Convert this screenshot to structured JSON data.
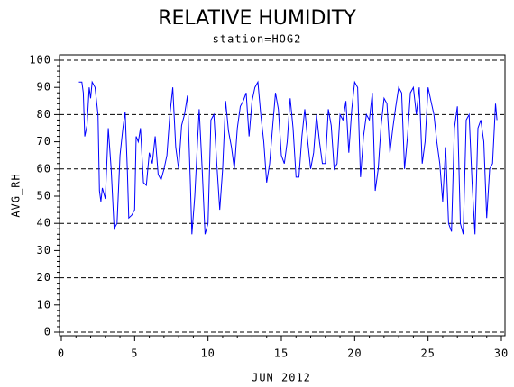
{
  "chart_data": {
    "type": "line",
    "title": "RELATIVE HUMIDITY",
    "subtitle": "station=HOG2",
    "x_label": "JUN 2012",
    "y_label": "AVG_RH",
    "xlim": [
      0,
      30
    ],
    "xticks": [
      0,
      5,
      10,
      15,
      20,
      25,
      30
    ],
    "ylim": [
      0,
      100
    ],
    "yticks": [
      0,
      10,
      20,
      30,
      40,
      50,
      60,
      70,
      80,
      90,
      100
    ],
    "gridlines": [
      0,
      20,
      40,
      60,
      80,
      100
    ],
    "series": [
      {
        "name": "AVG_RH",
        "color": "#0000ff",
        "x": [
          1.2,
          1.4,
          1.5,
          1.6,
          1.75,
          1.9,
          2.0,
          2.1,
          2.3,
          2.5,
          2.6,
          2.7,
          2.8,
          3.0,
          3.2,
          3.4,
          3.6,
          3.8,
          4.0,
          4.2,
          4.35,
          4.5,
          4.6,
          4.8,
          5.0,
          5.1,
          5.25,
          5.4,
          5.6,
          5.8,
          6.0,
          6.2,
          6.4,
          6.6,
          6.8,
          7.0,
          7.2,
          7.4,
          7.6,
          7.8,
          8.0,
          8.2,
          8.4,
          8.6,
          8.8,
          8.9,
          9.1,
          9.4,
          9.6,
          9.8,
          10.0,
          10.2,
          10.4,
          10.6,
          10.8,
          11.0,
          11.2,
          11.4,
          11.6,
          11.8,
          12.0,
          12.2,
          12.4,
          12.6,
          12.8,
          13.0,
          13.2,
          13.4,
          13.6,
          13.8,
          14.0,
          14.2,
          14.4,
          14.6,
          14.8,
          15.0,
          15.2,
          15.4,
          15.6,
          15.8,
          16.0,
          16.2,
          16.4,
          16.6,
          16.8,
          17.0,
          17.2,
          17.4,
          17.6,
          17.8,
          18.0,
          18.2,
          18.4,
          18.6,
          18.8,
          19.0,
          19.2,
          19.4,
          19.6,
          19.8,
          20.0,
          20.2,
          20.4,
          20.6,
          20.8,
          21.0,
          21.2,
          21.4,
          21.6,
          21.8,
          22.0,
          22.2,
          22.4,
          22.6,
          22.8,
          23.0,
          23.2,
          23.4,
          23.6,
          23.8,
          24.0,
          24.2,
          24.4,
          24.6,
          24.8,
          25.0,
          25.2,
          25.4,
          25.6,
          25.8,
          26.0,
          26.2,
          26.4,
          26.6,
          26.8,
          27.0,
          27.2,
          27.4,
          27.6,
          27.8,
          28.0,
          28.2,
          28.4,
          28.6,
          28.8,
          29.0,
          29.2,
          29.4,
          29.6,
          29.7
        ],
        "values": [
          92,
          92,
          88,
          72,
          76,
          90,
          86,
          92,
          90,
          80,
          52,
          48,
          53,
          49,
          75,
          60,
          38,
          40,
          65,
          75,
          81,
          60,
          42,
          43,
          45,
          72,
          70,
          75,
          55,
          54,
          66,
          62,
          72,
          58,
          56,
          60,
          65,
          80,
          90,
          68,
          60,
          76,
          80,
          87,
          55,
          36,
          50,
          82,
          60,
          36,
          40,
          78,
          80,
          62,
          45,
          60,
          85,
          74,
          68,
          60,
          75,
          83,
          85,
          88,
          72,
          85,
          90,
          92,
          80,
          70,
          55,
          62,
          75,
          88,
          82,
          65,
          62,
          70,
          86,
          75,
          57,
          57,
          72,
          82,
          70,
          60,
          66,
          80,
          70,
          62,
          62,
          82,
          76,
          60,
          62,
          80,
          78,
          85,
          66,
          82,
          92,
          90,
          57,
          72,
          80,
          78,
          88,
          52,
          60,
          76,
          86,
          84,
          66,
          75,
          83,
          90,
          88,
          60,
          72,
          88,
          90,
          80,
          90,
          62,
          70,
          90,
          85,
          80,
          70,
          62,
          48,
          68,
          40,
          37,
          75,
          83,
          40,
          36,
          78,
          80,
          55,
          36,
          75,
          78,
          70,
          42,
          60,
          62,
          84,
          78
        ]
      }
    ]
  }
}
